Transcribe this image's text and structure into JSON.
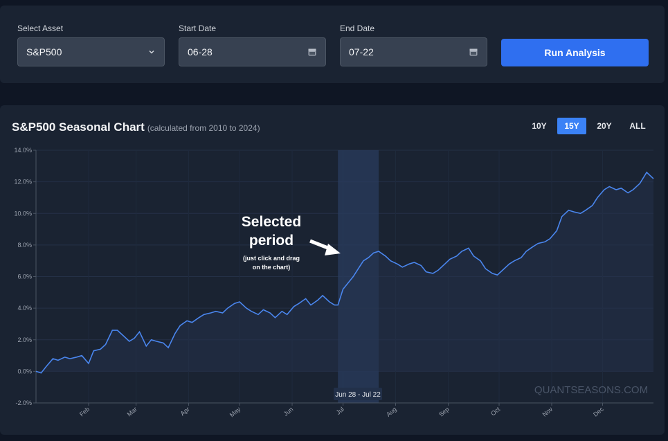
{
  "controls": {
    "asset_label": "Select Asset",
    "asset_value": "S&P500",
    "start_label": "Start Date",
    "start_value": "06-28",
    "end_label": "End Date",
    "end_value": "07-22",
    "run_label": "Run Analysis"
  },
  "chart_panel": {
    "title": "S&P500 Seasonal Chart",
    "subtitle": "(calculated from 2010 to 2024)",
    "ranges": [
      "10Y",
      "15Y",
      "20Y",
      "ALL"
    ],
    "active_range": "15Y",
    "watermark": "QUANTSEASONS.COM",
    "selection_label": "Jun 28 - Jul 22",
    "annotation_title_1": "Selected",
    "annotation_title_2": "period",
    "annotation_note_1": "(just click and drag",
    "annotation_note_2": "on the chart)"
  },
  "colors": {
    "line": "#4a86ee",
    "accent": "#2f6ff0",
    "panel": "#1a2332",
    "background": "#0f1624"
  },
  "chart_data": {
    "type": "line",
    "xlabel": "",
    "ylabel": "",
    "ylim": [
      -2,
      14
    ],
    "y_ticks": [
      "-2.0%",
      "0.0%",
      "2.0%",
      "4.0%",
      "6.0%",
      "8.0%",
      "10.0%",
      "12.0%",
      "14.0%"
    ],
    "y_tick_values": [
      -2,
      0,
      2,
      4,
      6,
      8,
      10,
      12,
      14
    ],
    "x_ticks": [
      "Feb",
      "Mar",
      "Apr",
      "May",
      "Jun",
      "Jul",
      "Aug",
      "Sep",
      "Oct",
      "Nov",
      "Dec"
    ],
    "x_tick_days": [
      31,
      59,
      90,
      120,
      151,
      181,
      212,
      243,
      273,
      304,
      334
    ],
    "selection": {
      "start_day": 178,
      "end_day": 202
    },
    "grid": true,
    "series": [
      {
        "days": [
          0,
          3,
          6,
          10,
          13,
          17,
          20,
          24,
          27,
          31,
          34,
          38,
          41,
          45,
          48,
          51,
          55,
          58,
          61,
          65,
          68,
          71,
          75,
          78,
          82,
          85,
          89,
          92,
          96,
          99,
          103,
          106,
          110,
          113,
          117,
          120,
          124,
          127,
          131,
          134,
          138,
          141,
          145,
          148,
          152,
          155,
          159,
          162,
          166,
          169,
          173,
          176,
          178,
          181,
          184,
          187,
          190,
          193,
          196,
          199,
          202,
          206,
          209,
          213,
          216,
          220,
          223,
          227,
          230,
          234,
          237,
          241,
          244,
          248,
          251,
          255,
          258,
          262,
          265,
          269,
          272,
          275,
          279,
          282,
          286,
          289,
          293,
          296,
          300,
          303,
          307,
          310,
          314,
          317,
          321,
          324,
          328,
          331,
          335,
          338,
          342,
          345,
          349,
          352,
          356,
          360,
          364
        ],
        "values": [
          0.0,
          -0.1,
          0.3,
          0.8,
          0.7,
          0.9,
          0.8,
          0.9,
          1.0,
          0.5,
          1.3,
          1.4,
          1.7,
          2.6,
          2.6,
          2.3,
          1.9,
          2.1,
          2.5,
          1.6,
          2.0,
          1.9,
          1.8,
          1.5,
          2.4,
          2.9,
          3.2,
          3.1,
          3.4,
          3.6,
          3.7,
          3.8,
          3.7,
          4.0,
          4.3,
          4.4,
          4.0,
          3.8,
          3.6,
          3.9,
          3.7,
          3.4,
          3.8,
          3.6,
          4.1,
          4.3,
          4.6,
          4.2,
          4.5,
          4.8,
          4.4,
          4.2,
          4.2,
          5.2,
          5.6,
          6.0,
          6.5,
          7.0,
          7.2,
          7.5,
          7.6,
          7.3,
          7.0,
          6.8,
          6.6,
          6.8,
          6.9,
          6.7,
          6.3,
          6.2,
          6.4,
          6.8,
          7.1,
          7.3,
          7.6,
          7.8,
          7.3,
          7.0,
          6.5,
          6.2,
          6.1,
          6.4,
          6.8,
          7.0,
          7.2,
          7.6,
          7.9,
          8.1,
          8.2,
          8.4,
          8.9,
          9.8,
          10.2,
          10.1,
          10.0,
          10.2,
          10.5,
          11.0,
          11.5,
          11.7,
          11.5,
          11.6,
          11.3,
          11.5,
          11.9,
          12.6,
          12.2
        ]
      }
    ]
  }
}
